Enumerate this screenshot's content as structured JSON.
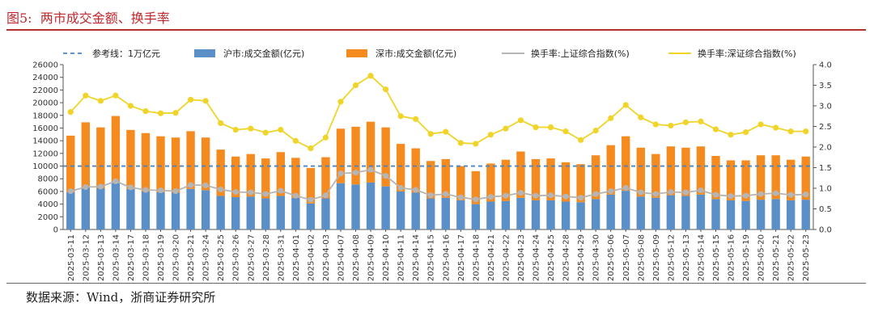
{
  "header": {
    "figure_title": "图5:  两市成交金额、换手率"
  },
  "footer": {
    "source": "数据来源：Wind，浙商证券研究所"
  },
  "colors": {
    "title": "#c0282d",
    "sh_bar": "#5b8fc7",
    "sz_bar": "#f58a1f",
    "sh_line": "#b5b5b5",
    "sz_line": "#f0d42a",
    "ref_line": "#4a86c4"
  },
  "chart_data": {
    "type": "bar",
    "categories": [
      "2025-03-11",
      "2025-03-12",
      "2025-03-13",
      "2025-03-14",
      "2025-03-17",
      "2025-03-18",
      "2025-03-19",
      "2025-03-20",
      "2025-03-21",
      "2025-03-24",
      "2025-03-25",
      "2025-03-26",
      "2025-03-27",
      "2025-03-28",
      "2025-03-31",
      "2025-04-01",
      "2025-04-02",
      "2025-04-03",
      "2025-04-07",
      "2025-04-08",
      "2025-04-09",
      "2025-04-10",
      "2025-04-11",
      "2025-04-14",
      "2025-04-15",
      "2025-04-16",
      "2025-04-17",
      "2025-04-18",
      "2025-04-21",
      "2025-04-22",
      "2025-04-23",
      "2025-04-24",
      "2025-04-25",
      "2025-04-28",
      "2025-04-29",
      "2025-04-30",
      "2025-05-06",
      "2025-05-07",
      "2025-05-08",
      "2025-05-09",
      "2025-05-12",
      "2025-05-13",
      "2025-05-14",
      "2025-05-15",
      "2025-05-16",
      "2025-05-19",
      "2025-05-20",
      "2025-05-21",
      "2025-05-22",
      "2025-05-23"
    ],
    "series": [
      {
        "name": "沪市:成交金额(亿元)",
        "kind": "bar-stack",
        "axis": "left",
        "values": [
          5900,
          6700,
          6500,
          7600,
          6400,
          6000,
          5900,
          5800,
          6400,
          6200,
          5300,
          5100,
          5200,
          4900,
          5300,
          5000,
          4100,
          4900,
          7300,
          7100,
          7400,
          6800,
          6000,
          5800,
          4900,
          5000,
          4600,
          4000,
          4400,
          4500,
          5000,
          4600,
          4600,
          4400,
          4300,
          4800,
          5500,
          6100,
          5200,
          5000,
          5400,
          5300,
          5500,
          4800,
          4600,
          4500,
          4700,
          4800,
          4600,
          4700
        ]
      },
      {
        "name": "深市:成交金额(亿元)",
        "kind": "bar-stack",
        "axis": "left",
        "values": [
          8900,
          10200,
          9600,
          10300,
          9300,
          9200,
          8800,
          8700,
          9100,
          8300,
          7300,
          6400,
          6700,
          6300,
          6900,
          6300,
          5600,
          6500,
          8600,
          9100,
          9600,
          9300,
          7500,
          7000,
          5900,
          6100,
          5400,
          5200,
          6000,
          6500,
          7300,
          6500,
          6600,
          6200,
          6000,
          6900,
          7800,
          8600,
          7700,
          6900,
          7700,
          7600,
          7600,
          6800,
          6300,
          6400,
          7000,
          6900,
          6400,
          6800
        ]
      },
      {
        "name": "换手率:上证综合指数(%)",
        "kind": "line",
        "axis": "right",
        "values": [
          0.93,
          1.03,
          1.04,
          1.17,
          1.02,
          0.96,
          0.95,
          0.93,
          1.08,
          1.07,
          0.97,
          0.91,
          0.9,
          0.86,
          0.94,
          0.82,
          0.72,
          0.83,
          1.36,
          1.38,
          1.45,
          1.3,
          1.01,
          0.96,
          0.83,
          0.86,
          0.78,
          0.73,
          0.79,
          0.82,
          0.89,
          0.82,
          0.83,
          0.8,
          0.77,
          0.86,
          0.93,
          1.01,
          0.9,
          0.86,
          0.91,
          0.9,
          0.95,
          0.84,
          0.81,
          0.82,
          0.86,
          0.88,
          0.84,
          0.85
        ]
      },
      {
        "name": "换手率:深证综合指数(%)",
        "kind": "line",
        "axis": "right",
        "values": [
          2.85,
          3.25,
          3.12,
          3.25,
          3.0,
          2.87,
          2.82,
          2.83,
          3.15,
          3.12,
          2.58,
          2.42,
          2.45,
          2.35,
          2.42,
          2.15,
          1.97,
          2.23,
          3.1,
          3.5,
          3.73,
          3.4,
          2.75,
          2.68,
          2.32,
          2.37,
          2.1,
          2.08,
          2.3,
          2.45,
          2.65,
          2.48,
          2.48,
          2.38,
          2.17,
          2.4,
          2.7,
          3.02,
          2.72,
          2.55,
          2.52,
          2.6,
          2.62,
          2.43,
          2.3,
          2.36,
          2.55,
          2.47,
          2.38,
          2.38
        ]
      }
    ],
    "reference": {
      "name": "参考线：1万亿元",
      "value": 10000,
      "axis": "left"
    },
    "y_left": {
      "ylim": [
        0,
        26000
      ],
      "ticks": [
        0,
        2000,
        4000,
        6000,
        8000,
        10000,
        12000,
        14000,
        16000,
        18000,
        20000,
        22000,
        24000,
        26000
      ]
    },
    "y_right": {
      "ylim": [
        0,
        4.0
      ],
      "ticks": [
        "0.0",
        "0.5",
        "1.0",
        "1.5",
        "2.0",
        "2.5",
        "3.0",
        "3.5",
        "4.0"
      ]
    },
    "legend_position": "top",
    "grid": false
  }
}
